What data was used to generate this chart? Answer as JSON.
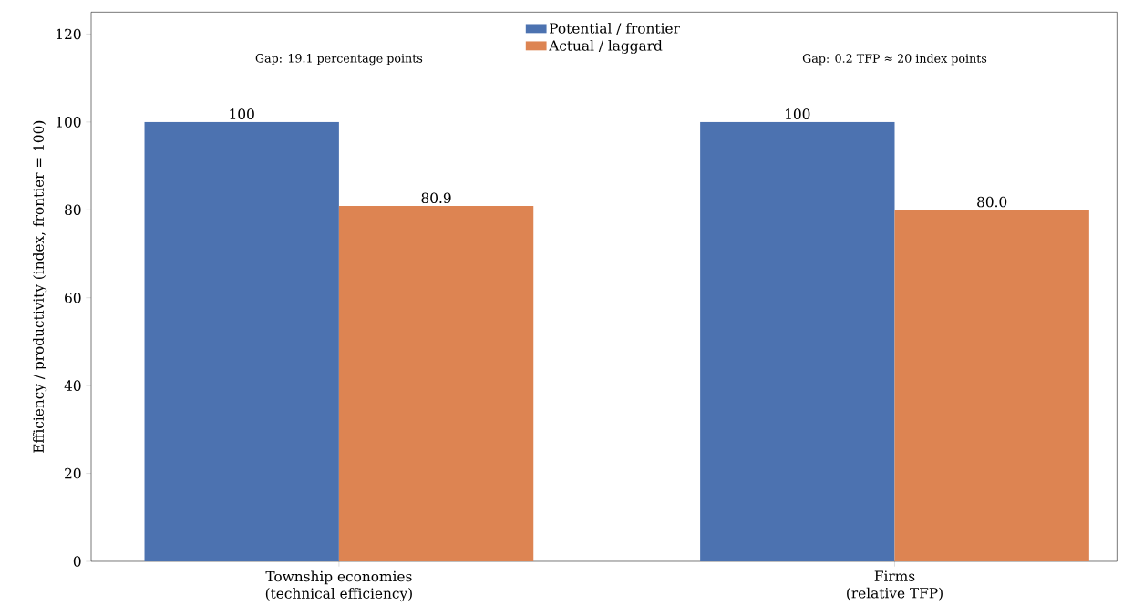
{
  "chart_data": {
    "type": "bar",
    "ylabel": "Efficiency / productivity (index, frontier = 100)",
    "categories": [
      "Township economies\n(technical efficiency)",
      "Firms\n(relative TFP)"
    ],
    "series": [
      {
        "name": "Potential / frontier",
        "color": "#4c72b0",
        "values": [
          100,
          100
        ],
        "value_labels": [
          "100",
          "100"
        ]
      },
      {
        "name": "Actual / laggard",
        "color": "#dd8452",
        "values": [
          80.9,
          80.0
        ],
        "value_labels": [
          "80.9",
          "80.0"
        ]
      }
    ],
    "annotations": [
      "Gap: 19.1 percentage points",
      "Gap: 0.2 TFP ≈ 20 index points"
    ],
    "ylim": [
      0,
      125
    ],
    "yticks": [
      0,
      20,
      40,
      60,
      80,
      100,
      120
    ],
    "legend": "top",
    "grid": false
  }
}
